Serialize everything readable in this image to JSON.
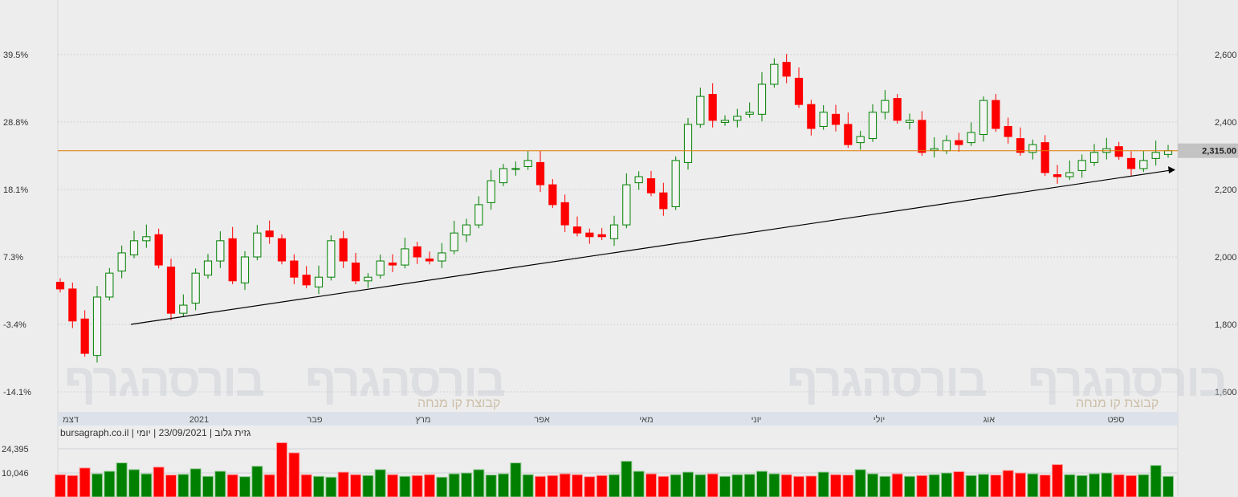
{
  "chart_data": {
    "type": "candlestick",
    "title": "",
    "info_line": "bursagraph.co.il | גזית גלוב | 23/09/2021 | יומי",
    "watermark": {
      "logo": "בורסהגרף",
      "tagline": "קבוצת קו מנחה"
    },
    "x_tick_labels": [
      "דצמ",
      "2021",
      "פבר",
      "מרץ",
      "אפר",
      "מאי",
      "יוני",
      "יולי",
      "אוג",
      "ספט"
    ],
    "y_right_ticks": [
      "2,600",
      "2,400",
      "2,200",
      "2,000",
      "1,800",
      "1,600"
    ],
    "y_right_values": [
      2600,
      2400,
      2200,
      2000,
      1800,
      1600
    ],
    "y_left_ticks": [
      "39.5%",
      "28.8%",
      "18.1%",
      "7.3%",
      "-3.4%",
      "-14.1%"
    ],
    "ylim": [
      1600,
      2600
    ],
    "last_price_label": "2,315.00",
    "last_price": 2315,
    "horizontal_line": 2315,
    "trendline": {
      "from_price": 1800,
      "to_price": 2257
    },
    "closes": [
      1905,
      1810,
      1714,
      1881,
      1952,
      2012,
      2048,
      2060,
      1976,
      1833,
      1857,
      1952,
      1988,
      2048,
      1929,
      2000,
      2071,
      2060,
      1988,
      1940,
      1917,
      1940,
      2048,
      1988,
      1929,
      1940,
      1988,
      1976,
      2024,
      2000,
      1988,
      2012,
      2071,
      2095,
      2155,
      2226,
      2262,
      2262,
      2286,
      2214,
      2155,
      2095,
      2071,
      2060,
      2060,
      2095,
      2214,
      2238,
      2190,
      2143,
      2286,
      2393,
      2476,
      2405,
      2405,
      2417,
      2429,
      2512,
      2571,
      2536,
      2452,
      2381,
      2429,
      2393,
      2333,
      2357,
      2429,
      2464,
      2405,
      2405,
      2310,
      2321,
      2345,
      2333,
      2369,
      2464,
      2381,
      2357,
      2310,
      2333,
      2250,
      2238,
      2250,
      2286,
      2310,
      2321,
      2298,
      2262,
      2286,
      2310,
      2315
    ],
    "volume": {
      "axis_ticks": [
        "24,395",
        "10,046"
      ],
      "axis_values": [
        24395,
        10046
      ],
      "values": [
        9000,
        8500,
        13000,
        9500,
        11000,
        16000,
        12000,
        9500,
        13500,
        8800,
        9200,
        12500,
        8000,
        11000,
        9000,
        7800,
        14000,
        9000,
        28000,
        22000,
        9000,
        8000,
        7500,
        10500,
        9000,
        8500,
        12000,
        9000,
        8000,
        8500,
        9000,
        7500,
        9500,
        10000,
        12000,
        8800,
        9500,
        16000,
        9000,
        8000,
        8500,
        9500,
        9000,
        7800,
        8500,
        9000,
        17000,
        11000,
        9500,
        8000,
        9000,
        10500,
        9000,
        9500,
        8000,
        9000,
        9200,
        11000,
        9500,
        9000,
        8000,
        8200,
        10500,
        9000,
        8800,
        12000,
        9500,
        8000,
        9500,
        8000,
        8500,
        9000,
        10000,
        10800,
        8500,
        9200,
        8800,
        11500,
        10000,
        9500,
        8800,
        15000,
        9000,
        8500,
        9500,
        10000,
        9000,
        8500,
        9000,
        14500,
        8000
      ]
    },
    "colors": {
      "up": "#008000",
      "down": "#ff0000",
      "hline": "#e07b00",
      "trend": "#000000",
      "axis_bar": "#dde2ea"
    }
  }
}
